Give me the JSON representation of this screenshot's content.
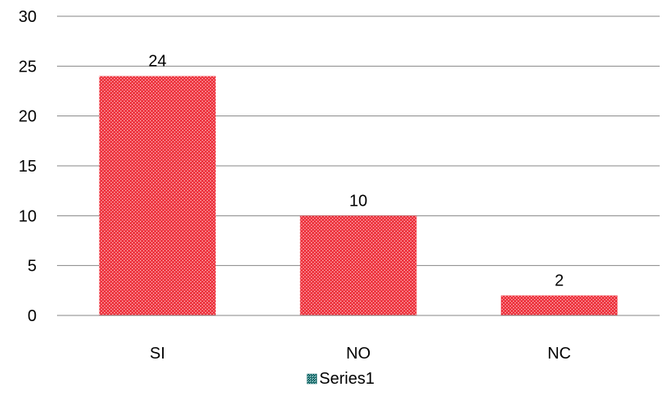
{
  "chart_data": {
    "type": "bar",
    "categories": [
      "SI",
      "NO",
      "NC"
    ],
    "series": [
      {
        "name": "Series1",
        "values": [
          24,
          10,
          2
        ]
      }
    ],
    "data_labels": [
      "24",
      "10",
      "2"
    ],
    "yticks": [
      "0",
      "5",
      "10",
      "15",
      "20",
      "25",
      "30"
    ],
    "ylim": [
      0,
      30
    ],
    "grid": true,
    "legend_position": "bottom",
    "colors": {
      "bar_fill": "#ee3b45",
      "bar_pattern_dot": "#ffd3d6",
      "legend_marker": "#1f6f6f",
      "gridline": "#868686"
    }
  }
}
